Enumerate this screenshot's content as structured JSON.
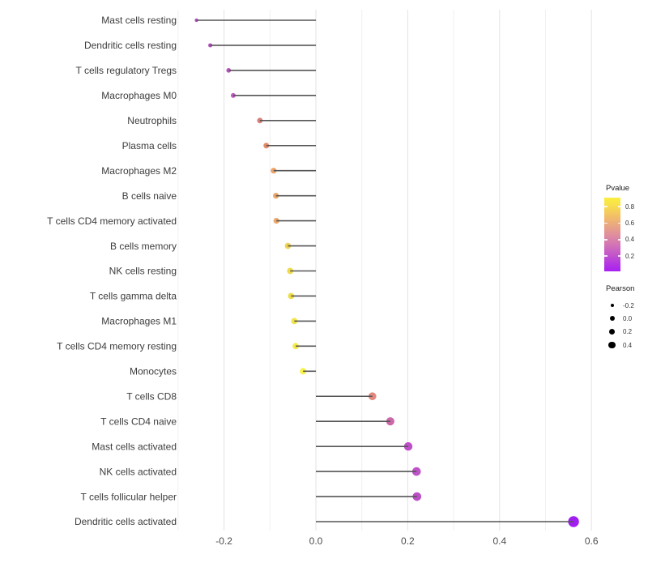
{
  "chart_data": {
    "type": "lollipop",
    "orientation": "horizontal",
    "grid": "vertical-only",
    "xlim": [
      -0.301,
      0.601
    ],
    "baseline": 0.0,
    "x_ticks": [
      {
        "label": "-0.2",
        "value": -0.2
      },
      {
        "label": "0.0",
        "value": 0.0
      },
      {
        "label": "0.2",
        "value": 0.2
      },
      {
        "label": "0.4",
        "value": 0.4
      },
      {
        "label": "0.6",
        "value": 0.6
      }
    ],
    "x_minor_ticks": [
      -0.3,
      -0.1,
      0.1,
      0.3,
      0.5
    ],
    "points": [
      {
        "label": "Mast cells resting",
        "pearson": -0.26,
        "pvalue": 0.2,
        "color": "#AF50BC"
      },
      {
        "label": "Dendritic cells resting",
        "pearson": -0.23,
        "pvalue": 0.18,
        "color": "#B14CBE"
      },
      {
        "label": "T cells regulatory  Tregs",
        "pearson": -0.19,
        "pvalue": 0.22,
        "color": "#B854C1"
      },
      {
        "label": "Macrophages M0",
        "pearson": -0.18,
        "pvalue": 0.24,
        "color": "#BC58C0"
      },
      {
        "label": "Neutrophils",
        "pearson": -0.122,
        "pvalue": 0.55,
        "color": "#D8807B"
      },
      {
        "label": "Plasma cells",
        "pearson": -0.108,
        "pvalue": 0.62,
        "color": "#E28C69"
      },
      {
        "label": "Macrophages M2",
        "pearson": -0.092,
        "pvalue": 0.67,
        "color": "#ECA468"
      },
      {
        "label": "B cells naive",
        "pearson": -0.087,
        "pvalue": 0.69,
        "color": "#ECA76B"
      },
      {
        "label": "T cells CD4 memory activated",
        "pearson": -0.086,
        "pvalue": 0.69,
        "color": "#ECA76B"
      },
      {
        "label": "B cells memory",
        "pearson": -0.061,
        "pvalue": 0.79,
        "color": "#EDD254"
      },
      {
        "label": "NK cells resting",
        "pearson": -0.056,
        "pvalue": 0.81,
        "color": "#EEDB4A"
      },
      {
        "label": "T cells gamma delta",
        "pearson": -0.054,
        "pvalue": 0.81,
        "color": "#EEDC4A"
      },
      {
        "label": "Macrophages M1",
        "pearson": -0.047,
        "pvalue": 0.84,
        "color": "#F2E44B"
      },
      {
        "label": "T cells CD4 memory resting",
        "pearson": -0.044,
        "pvalue": 0.86,
        "color": "#F5EA4C"
      },
      {
        "label": "Monocytes",
        "pearson": -0.028,
        "pvalue": 0.9,
        "color": "#F8F24B"
      },
      {
        "label": "T cells CD8",
        "pearson": 0.123,
        "pvalue": 0.57,
        "color": "#E0887E"
      },
      {
        "label": "T cells CD4 naive",
        "pearson": 0.162,
        "pvalue": 0.45,
        "color": "#CD67A8"
      },
      {
        "label": "Mast cells activated",
        "pearson": 0.201,
        "pvalue": 0.27,
        "color": "#BE4FC8"
      },
      {
        "label": "NK cells activated",
        "pearson": 0.219,
        "pvalue": 0.24,
        "color": "#BE52C8"
      },
      {
        "label": "T cells follicular helper",
        "pearson": 0.22,
        "pvalue": 0.26,
        "color": "#BB50C6"
      },
      {
        "label": "Dendritic cells activated",
        "pearson": 0.561,
        "pvalue": 0.01,
        "color": "#A01FF0"
      }
    ]
  },
  "legends": {
    "pvalue": {
      "title": "Pvalue",
      "range": [
        0.015,
        0.91
      ],
      "ticks": [
        {
          "label": "0.8",
          "value": 0.8
        },
        {
          "label": "0.6",
          "value": 0.6
        },
        {
          "label": "0.4",
          "value": 0.4
        },
        {
          "label": "0.2",
          "value": 0.2
        }
      ],
      "gradient_stops": [
        {
          "at": 0,
          "color": "#FAEF3E"
        },
        {
          "at": 10,
          "color": "#F8E04C"
        },
        {
          "at": 25,
          "color": "#F2C066"
        },
        {
          "at": 40,
          "color": "#E8A287"
        },
        {
          "at": 52,
          "color": "#DE8BA0"
        },
        {
          "at": 65,
          "color": "#D172B8"
        },
        {
          "at": 78,
          "color": "#C254CC"
        },
        {
          "at": 90,
          "color": "#B336E2"
        },
        {
          "at": 100,
          "color": "#A81FF0"
        }
      ]
    },
    "pearson": {
      "title": "Pearson",
      "dot_color": "#000000",
      "entries": [
        {
          "label": "-0.2",
          "value": -0.2
        },
        {
          "label": "0.0",
          "value": 0.0
        },
        {
          "label": "0.2",
          "value": 0.2
        },
        {
          "label": "0.4",
          "value": 0.4
        }
      ]
    }
  },
  "style": {
    "stem_color": "#555555",
    "grid_major_color": "#e3e3e3",
    "grid_minor_color": "#f0f0f0",
    "axis_text_color": "#4d4d4d",
    "category_text_color": "#3c3c3c",
    "background": "#ffffff"
  }
}
